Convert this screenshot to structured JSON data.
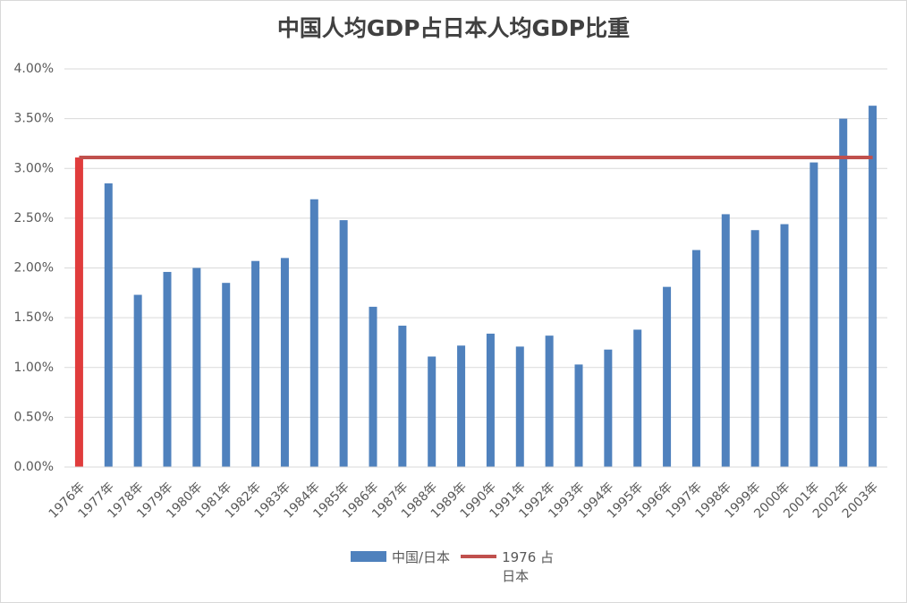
{
  "chart_data": {
    "type": "bar",
    "title": "中国人均GDP占日本人均GDP比重",
    "categories": [
      "1976年",
      "1977年",
      "1978年",
      "1979年",
      "1980年",
      "1981年",
      "1982年",
      "1983年",
      "1984年",
      "1985年",
      "1986年",
      "1987年",
      "1988年",
      "1989年",
      "1990年",
      "1991年",
      "1992年",
      "1993年",
      "1994年",
      "1995年",
      "1996年",
      "1997年",
      "1998年",
      "1999年",
      "2000年",
      "2001年",
      "2002年",
      "2003年"
    ],
    "series": [
      {
        "name": "中国/日本",
        "type": "bar",
        "color": "#4f81bd",
        "first_color": "#e03c3c",
        "values": [
          3.11,
          2.85,
          1.73,
          1.96,
          2.0,
          1.85,
          2.07,
          2.1,
          2.69,
          2.48,
          1.61,
          1.42,
          1.11,
          1.22,
          1.34,
          1.21,
          1.32,
          1.03,
          1.18,
          1.38,
          1.81,
          2.18,
          2.54,
          2.38,
          2.44,
          3.06,
          3.5,
          3.63
        ]
      },
      {
        "name": "1976 占日本",
        "type": "line",
        "color": "#c0504d",
        "values": [
          3.11,
          3.11,
          3.11,
          3.11,
          3.11,
          3.11,
          3.11,
          3.11,
          3.11,
          3.11,
          3.11,
          3.11,
          3.11,
          3.11,
          3.11,
          3.11,
          3.11,
          3.11,
          3.11,
          3.11,
          3.11,
          3.11,
          3.11,
          3.11,
          3.11,
          3.11,
          3.11,
          3.11
        ]
      }
    ],
    "ylim": [
      0,
      4
    ],
    "yticks": [
      {
        "value": 0,
        "label": "0.00%"
      },
      {
        "value": 0.5,
        "label": "0.50%"
      },
      {
        "value": 1,
        "label": "1.00%"
      },
      {
        "value": 1.5,
        "label": "1.50%"
      },
      {
        "value": 2,
        "label": "2.00%"
      },
      {
        "value": 2.5,
        "label": "2.50%"
      },
      {
        "value": 3,
        "label": "3.00%"
      },
      {
        "value": 3.5,
        "label": "3.50%"
      },
      {
        "value": 4,
        "label": "4.00%"
      }
    ],
    "grid": true,
    "legend": "bottom"
  }
}
